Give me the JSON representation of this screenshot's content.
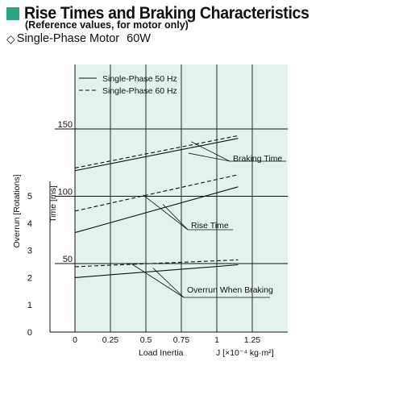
{
  "header": {
    "title": "Rise Times and Braking Characteristics",
    "subtitle": "(Reference values, for motor only)",
    "motor_label": "Single-Phase Motor",
    "motor_power": "60W",
    "accent_color": "#2aa583"
  },
  "chart_data": {
    "type": "line",
    "plot_background": "#e3f2ee",
    "grid": true,
    "legend_position": "top-left",
    "x": {
      "label": "Load Inertia",
      "unit_label": "J [×10⁻⁴ kg·m²]",
      "ticks": [
        0,
        0.25,
        0.5,
        0.75,
        1,
        1.25
      ],
      "tick_labels": [
        "0",
        "0.25",
        "0.5",
        "0.75",
        "1",
        "1.25"
      ],
      "range": [
        0,
        1.5
      ]
    },
    "y_time": {
      "label": "Time [ms]",
      "ticks": [
        50,
        100,
        150
      ],
      "tick_labels": [
        "50",
        "100",
        "150"
      ]
    },
    "y_overrun": {
      "label": "Overrun [Rotations]",
      "ticks": [
        0,
        1,
        2,
        3,
        4,
        5
      ],
      "tick_labels": [
        "0",
        "1",
        "2",
        "3",
        "4",
        "5"
      ],
      "range": [
        0,
        5
      ]
    },
    "legend": [
      {
        "name": "Single-Phase 50 Hz",
        "style": "solid"
      },
      {
        "name": "Single-Phase 60 Hz",
        "style": "dashed"
      }
    ],
    "series": [
      {
        "group": "Braking Time",
        "freq": "50 Hz",
        "style": "solid",
        "axis": "time",
        "x": [
          0,
          1.15
        ],
        "y": [
          119,
          143
        ]
      },
      {
        "group": "Braking Time",
        "freq": "60 Hz",
        "style": "dashed",
        "axis": "time",
        "x": [
          0,
          1.15
        ],
        "y": [
          121,
          145
        ]
      },
      {
        "group": "Rise Time",
        "freq": "60 Hz",
        "style": "dashed",
        "axis": "time",
        "x": [
          0,
          1.15
        ],
        "y": [
          89,
          116
        ]
      },
      {
        "group": "Rise Time",
        "freq": "50 Hz",
        "style": "solid",
        "axis": "time",
        "x": [
          0,
          1.15
        ],
        "y": [
          73,
          107
        ]
      },
      {
        "group": "Overrun When Braking",
        "freq": "60 Hz",
        "style": "dashed",
        "axis": "overrun",
        "x": [
          0,
          1.15
        ],
        "y": [
          2.4,
          2.65
        ]
      },
      {
        "group": "Overrun When Braking",
        "freq": "50 Hz",
        "style": "solid",
        "axis": "overrun",
        "x": [
          0,
          1.15
        ],
        "y": [
          2.0,
          2.47
        ]
      }
    ],
    "annotations": [
      {
        "text": "Braking Time",
        "targets": [
          [
            0.82,
            140.5
          ],
          [
            0.8,
            132
          ]
        ]
      },
      {
        "text": "Rise Time",
        "targets": [
          [
            0.48,
            101
          ],
          [
            0.62,
            94
          ]
        ]
      },
      {
        "text": "Overrun When Braking",
        "targets": [
          [
            0.4,
            2.5
          ],
          [
            0.55,
            2.35
          ]
        ]
      }
    ]
  }
}
